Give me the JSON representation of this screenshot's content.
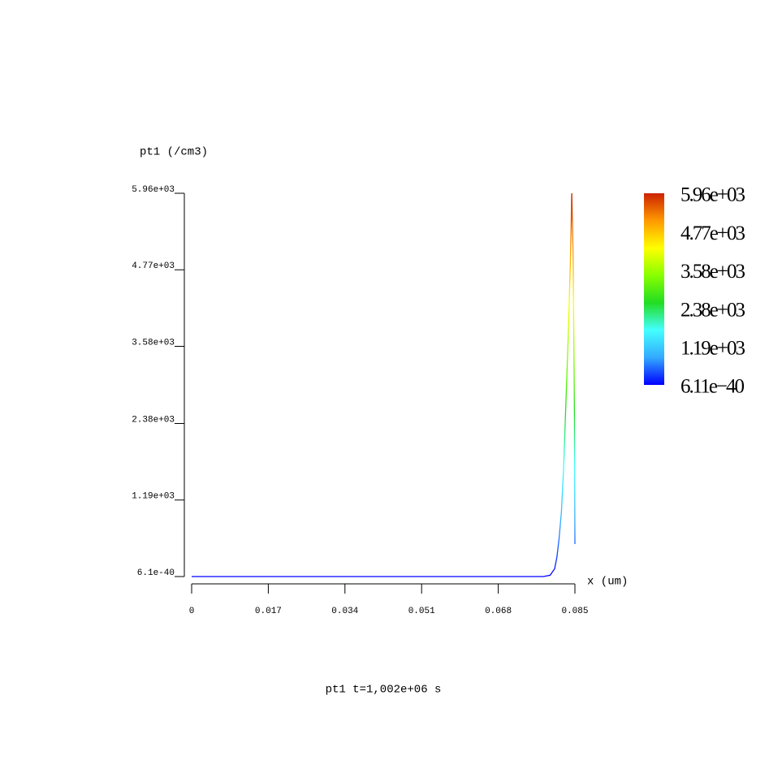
{
  "chart_data": {
    "type": "line",
    "y_label": "pt1 (/cm3)",
    "x_label": "x (um)",
    "title": "pt1 t=1,002e+06 s",
    "x": [
      0,
      0.02,
      0.04,
      0.06,
      0.078,
      0.0795,
      0.0805,
      0.081,
      0.0815,
      0.082,
      0.0825,
      0.083,
      0.0835,
      0.084,
      0.0843,
      0.0846,
      0.0849,
      0.085
    ],
    "values": [
      0,
      0,
      0,
      0,
      0,
      20,
      120,
      300,
      600,
      1000,
      1700,
      2700,
      3700,
      4900,
      5960,
      5000,
      2500,
      505
    ],
    "xlim": [
      0,
      0.085
    ],
    "xticks": [
      0,
      0.017,
      0.034,
      0.051,
      0.068,
      0.085
    ],
    "ylim": [
      6.1e-40,
      5960
    ],
    "yticks": [
      {
        "value": 6.1e-40,
        "label": "6.1e-40"
      },
      {
        "value": 1190,
        "label": "1.19e+03"
      },
      {
        "value": 2380,
        "label": "2.38e+03"
      },
      {
        "value": 3580,
        "label": "3.58e+03"
      },
      {
        "value": 4770,
        "label": "4.77e+03"
      },
      {
        "value": 5960,
        "label": "5.96e+03"
      }
    ],
    "colorbar": {
      "colors": [
        "#0000ff",
        "#33aaff",
        "#44ffff",
        "#22dd22",
        "#88ff00",
        "#ffff00",
        "#ff9900",
        "#cc2200"
      ],
      "lim": [
        6.11e-40,
        5960
      ],
      "ticks": [
        {
          "value": 6.11e-40,
          "label": "6.11e−40"
        },
        {
          "value": 1190,
          "label": "1.19e+03"
        },
        {
          "value": 2380,
          "label": "2.38e+03"
        },
        {
          "value": 3580,
          "label": "3.58e+03"
        },
        {
          "value": 4770,
          "label": "4.77e+03"
        },
        {
          "value": 5960,
          "label": "5.96e+03"
        }
      ]
    }
  }
}
